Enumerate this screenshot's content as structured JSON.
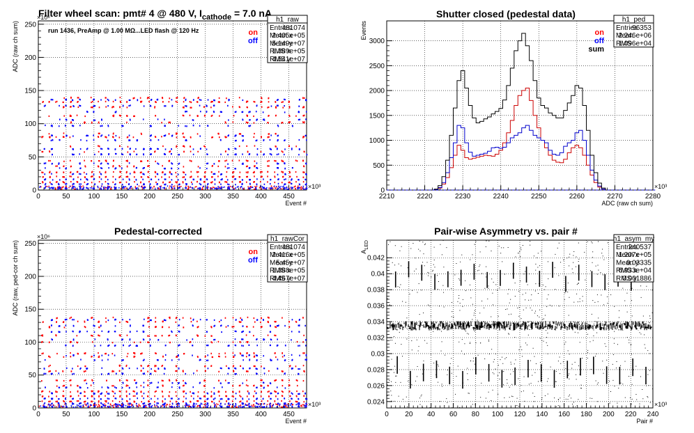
{
  "chart_data": [
    {
      "id": "raw",
      "type": "scatter",
      "title": "Filter wheel scan: pmt#   4 @   480 V, I",
      "title_sub": "cathode",
      "title_tail": " = 7.0 nA",
      "annotation": "run 1436, PreAmp @ 1.00 MΩ...LED flash @  120 Hz",
      "xlabel": "Event #",
      "ylabel": "ADC (raw ch sum)",
      "x_exp": "×10³",
      "y_exp": "×10⁶",
      "xlim": [
        0,
        482
      ],
      "ylim": [
        0,
        255
      ],
      "xticks": [
        0,
        50,
        100,
        150,
        200,
        250,
        300,
        350,
        400,
        450
      ],
      "yticks": [
        0,
        50,
        100,
        150,
        200,
        250
      ],
      "legend": [
        "on",
        "off"
      ],
      "series": [
        {
          "name": "on",
          "color": "#ff0000",
          "levels": [
            139,
            133,
            125,
            112,
            102,
            85,
            80,
            66,
            58,
            44,
            36,
            27,
            20,
            12
          ]
        },
        {
          "name": "off",
          "color": "#0000ff",
          "levels": [
            136,
            127,
            118,
            106,
            97,
            82,
            75,
            62,
            54,
            40,
            33,
            24,
            16,
            9,
            3
          ]
        }
      ],
      "stats": {
        "title": "h1_raw",
        "rows": [
          [
            "Entries",
            "481074"
          ],
          [
            "Mean x",
            "2.405e+05"
          ],
          [
            "Mean y",
            "5.149e+07"
          ],
          [
            "RMS x",
            "1.389e+05"
          ],
          [
            "RMS y",
            "4.541e+07"
          ]
        ]
      }
    },
    {
      "id": "ped",
      "type": "line",
      "title": "Shutter closed (pedestal data)",
      "xlabel": "ADC (raw ch sum)",
      "ylabel": "Events",
      "x_exp": "×10³",
      "xlim": [
        2210,
        2280
      ],
      "ylim": [
        0,
        3400
      ],
      "xticks": [
        2210,
        2220,
        2230,
        2240,
        2250,
        2260,
        2270,
        2280
      ],
      "yticks": [
        0,
        500,
        1000,
        1500,
        2000,
        2500,
        3000
      ],
      "legend": [
        "on",
        "off",
        "sum"
      ],
      "series": [
        {
          "name": "on",
          "color": "#cc0000",
          "x": [
            2223,
            2224,
            2225,
            2226,
            2227,
            2228,
            2229,
            2230,
            2231,
            2232,
            2233,
            2234,
            2235,
            2236,
            2237,
            2238,
            2239,
            2240,
            2241,
            2242,
            2243,
            2244,
            2245,
            2246,
            2247,
            2248,
            2249,
            2250,
            2251,
            2252,
            2253,
            2254,
            2255,
            2256,
            2257,
            2258,
            2259,
            2260,
            2261,
            2262,
            2263,
            2264,
            2265,
            2266,
            2267
          ],
          "y": [
            10,
            40,
            120,
            250,
            450,
            700,
            900,
            800,
            650,
            620,
            640,
            660,
            680,
            700,
            690,
            680,
            720,
            800,
            950,
            1150,
            1400,
            1700,
            1900,
            2000,
            2050,
            1800,
            1500,
            1250,
            1000,
            850,
            700,
            600,
            560,
            550,
            620,
            750,
            850,
            900,
            850,
            700,
            500,
            300,
            150,
            60,
            20
          ]
        },
        {
          "name": "off",
          "color": "#0000cc",
          "x": [
            2223,
            2224,
            2225,
            2226,
            2227,
            2228,
            2229,
            2230,
            2231,
            2232,
            2233,
            2234,
            2235,
            2236,
            2237,
            2238,
            2239,
            2240,
            2241,
            2242,
            2243,
            2244,
            2245,
            2246,
            2247,
            2248,
            2249,
            2250,
            2251,
            2252,
            2253,
            2254,
            2255,
            2256,
            2257,
            2258,
            2259,
            2260,
            2261,
            2262,
            2263,
            2264,
            2265,
            2266,
            2267
          ],
          "y": [
            10,
            50,
            150,
            350,
            650,
            950,
            1300,
            1250,
            950,
            760,
            680,
            700,
            720,
            740,
            780,
            850,
            860,
            840,
            860,
            950,
            1050,
            1100,
            1150,
            1250,
            1300,
            1200,
            1100,
            1050,
            1000,
            950,
            800,
            720,
            700,
            750,
            880,
            950,
            1000,
            1150,
            1200,
            1000,
            700,
            400,
            200,
            80,
            20
          ]
        },
        {
          "name": "sum",
          "color": "#000000",
          "x": [
            2223,
            2224,
            2225,
            2226,
            2227,
            2228,
            2229,
            2230,
            2231,
            2232,
            2233,
            2234,
            2235,
            2236,
            2237,
            2238,
            2239,
            2240,
            2241,
            2242,
            2243,
            2244,
            2245,
            2246,
            2247,
            2248,
            2249,
            2250,
            2251,
            2252,
            2253,
            2254,
            2255,
            2256,
            2257,
            2258,
            2259,
            2260,
            2261,
            2262,
            2263,
            2264,
            2265,
            2266,
            2267
          ],
          "y": [
            20,
            90,
            270,
            600,
            1100,
            1650,
            2200,
            2400,
            2050,
            1700,
            1450,
            1350,
            1380,
            1430,
            1470,
            1530,
            1580,
            1640,
            1810,
            2100,
            2450,
            2800,
            3000,
            3150,
            2900,
            2600,
            2200,
            1850,
            1700,
            1650,
            1550,
            1500,
            1450,
            1450,
            1600,
            1750,
            1900,
            2100,
            2050,
            1700,
            1200,
            700,
            350,
            140,
            40
          ]
        }
      ],
      "stats": {
        "title": "h1_ped",
        "rows": [
          [
            "Entries",
            "96353"
          ],
          [
            "Mean",
            "2.246e+06"
          ],
          [
            "RMS",
            "1.096e+04"
          ]
        ]
      }
    },
    {
      "id": "cor",
      "type": "scatter",
      "title": "Pedestal-corrected",
      "xlabel": "Event #",
      "ylabel": "ADC (raw, ped-cor ch sum)",
      "x_exp": "×10³",
      "y_exp": "×10⁶",
      "xlim": [
        0,
        482
      ],
      "ylim": [
        0,
        255
      ],
      "xticks": [
        0,
        50,
        100,
        150,
        200,
        250,
        300,
        350,
        400,
        450
      ],
      "yticks": [
        0,
        50,
        100,
        150,
        200,
        250
      ],
      "legend": [
        "on",
        "off"
      ],
      "series": [
        {
          "name": "on",
          "color": "#ff0000",
          "levels": [
            137,
            131,
            123,
            110,
            100,
            83,
            78,
            64,
            56,
            42,
            34,
            25,
            18,
            10
          ]
        },
        {
          "name": "off",
          "color": "#0000ff",
          "levels": [
            134,
            125,
            116,
            104,
            95,
            80,
            73,
            60,
            52,
            38,
            31,
            22,
            14,
            7,
            2
          ]
        }
      ],
      "stats": {
        "title": "h1_rawCor",
        "rows": [
          [
            "Entries",
            "481074"
          ],
          [
            "Mean x",
            "2.416e+05"
          ],
          [
            "Mean y",
            "5.45e+07"
          ],
          [
            "RMS x",
            "1.388e+05"
          ],
          [
            "RMS y",
            "4.467e+07"
          ]
        ]
      }
    },
    {
      "id": "asym",
      "type": "scatter",
      "title": "Pair-wise Asymmetry vs. pair #",
      "xlabel": "Pair #",
      "ylabel": "A_LED",
      "x_exp": "×10³",
      "xlim": [
        0,
        240
      ],
      "ylim": [
        0.0232,
        0.0442
      ],
      "xticks": [
        0,
        20,
        40,
        60,
        80,
        100,
        120,
        140,
        160,
        180,
        200,
        220,
        240
      ],
      "yticks": [
        0.024,
        0.026,
        0.028,
        0.03,
        0.032,
        0.034,
        0.036,
        0.038,
        0.04,
        0.042
      ],
      "ytick_labels": [
        "0.024",
        "0.026",
        "0.028",
        "0.03",
        "0.032",
        "0.034",
        "0.036",
        "0.038",
        "0.04",
        "0.042"
      ],
      "band_center": 0.0335,
      "band_halfwidth": 0.0006,
      "stats": {
        "title": "h1_asym_my",
        "rows": [
          [
            "Entries",
            "240537"
          ],
          [
            "Mean x",
            "1.207e+05"
          ],
          [
            "Mean y",
            "0.03335"
          ],
          [
            "RMS x",
            "6.933e+04"
          ],
          [
            "RMS y",
            "0.001886"
          ]
        ]
      }
    }
  ]
}
